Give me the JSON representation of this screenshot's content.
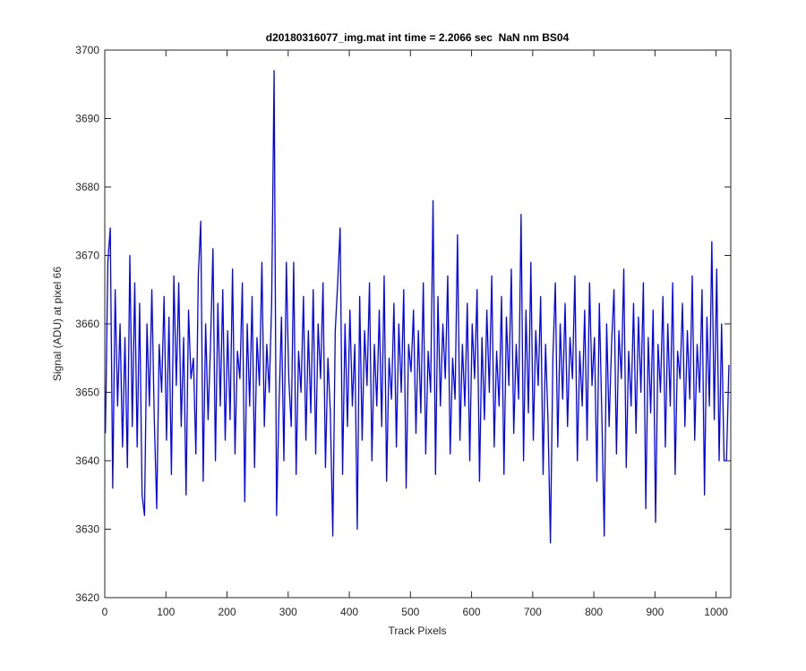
{
  "chart_data": {
    "type": "line",
    "title": "d20180316077_img.mat int time = 2.2066 sec  NaN nm BS04",
    "xlabel": "Track Pixels",
    "ylabel": "Signal (ADU) at pixel 66",
    "color": "#0000ff",
    "xlim": [
      0,
      1024
    ],
    "ylim": [
      3620,
      3700
    ],
    "xticks": [
      0,
      100,
      200,
      300,
      400,
      500,
      600,
      700,
      800,
      900,
      1000
    ],
    "yticks": [
      3620,
      3630,
      3640,
      3650,
      3660,
      3670,
      3680,
      3690,
      3700
    ],
    "grid": false,
    "x": [
      1,
      5,
      9,
      13,
      17,
      21,
      25,
      29,
      33,
      37,
      41,
      45,
      49,
      53,
      57,
      61,
      65,
      69,
      73,
      77,
      81,
      85,
      89,
      93,
      97,
      101,
      105,
      109,
      113,
      117,
      121,
      125,
      129,
      133,
      137,
      141,
      145,
      149,
      153,
      157,
      161,
      165,
      169,
      173,
      177,
      181,
      185,
      189,
      193,
      197,
      201,
      205,
      209,
      213,
      217,
      221,
      225,
      229,
      233,
      237,
      241,
      245,
      249,
      253,
      257,
      261,
      265,
      269,
      273,
      277,
      281,
      285,
      289,
      293,
      297,
      301,
      305,
      309,
      313,
      317,
      321,
      325,
      329,
      333,
      337,
      341,
      345,
      349,
      353,
      357,
      361,
      365,
      369,
      373,
      377,
      381,
      385,
      389,
      393,
      397,
      401,
      405,
      409,
      413,
      417,
      421,
      425,
      429,
      433,
      437,
      441,
      445,
      449,
      453,
      457,
      461,
      465,
      469,
      473,
      477,
      481,
      485,
      489,
      493,
      497,
      501,
      505,
      509,
      513,
      517,
      521,
      525,
      529,
      533,
      537,
      541,
      545,
      549,
      553,
      557,
      561,
      565,
      569,
      573,
      577,
      581,
      585,
      589,
      593,
      597,
      601,
      605,
      609,
      613,
      617,
      621,
      625,
      629,
      633,
      637,
      641,
      645,
      649,
      653,
      657,
      661,
      665,
      669,
      673,
      677,
      681,
      685,
      689,
      693,
      697,
      701,
      705,
      709,
      713,
      717,
      721,
      725,
      729,
      733,
      737,
      741,
      745,
      749,
      753,
      757,
      761,
      765,
      769,
      773,
      777,
      781,
      785,
      789,
      793,
      797,
      801,
      805,
      809,
      813,
      817,
      821,
      825,
      829,
      833,
      837,
      841,
      845,
      849,
      853,
      857,
      861,
      865,
      869,
      873,
      877,
      881,
      885,
      889,
      893,
      897,
      901,
      905,
      909,
      913,
      917,
      921,
      925,
      929,
      933,
      937,
      941,
      945,
      949,
      953,
      957,
      961,
      965,
      969,
      973,
      977,
      981,
      985,
      989,
      993,
      997,
      1001,
      1005,
      1009,
      1013,
      1017,
      1021
    ],
    "values": [
      3644,
      3669,
      3674,
      3636,
      3665,
      3648,
      3660,
      3642,
      3658,
      3639,
      3670,
      3645,
      3666,
      3642,
      3663,
      3635,
      3632,
      3660,
      3648,
      3665,
      3646,
      3633,
      3657,
      3650,
      3664,
      3643,
      3661,
      3638,
      3667,
      3651,
      3666,
      3645,
      3658,
      3635,
      3662,
      3652,
      3655,
      3641,
      3667,
      3675,
      3637,
      3660,
      3646,
      3657,
      3671,
      3640,
      3663,
      3648,
      3665,
      3643,
      3659,
      3646,
      3668,
      3641,
      3656,
      3652,
      3666,
      3634,
      3660,
      3648,
      3664,
      3639,
      3658,
      3651,
      3669,
      3645,
      3657,
      3650,
      3663,
      3697,
      3632,
      3648,
      3661,
      3640,
      3669,
      3652,
      3645,
      3669,
      3638,
      3656,
      3650,
      3664,
      3643,
      3659,
      3647,
      3665,
      3641,
      3660,
      3652,
      3666,
      3639,
      3655,
      3647,
      3629,
      3659,
      3666,
      3674,
      3638,
      3660,
      3645,
      3662,
      3648,
      3657,
      3630,
      3664,
      3643,
      3659,
      3651,
      3666,
      3640,
      3657,
      3648,
      3662,
      3645,
      3667,
      3637,
      3655,
      3649,
      3663,
      3642,
      3660,
      3650,
      3665,
      3636,
      3657,
      3653,
      3662,
      3644,
      3659,
      3647,
      3666,
      3641,
      3656,
      3650,
      3678,
      3638,
      3664,
      3648,
      3660,
      3652,
      3667,
      3641,
      3655,
      3649,
      3673,
      3643,
      3657,
      3648,
      3663,
      3640,
      3660,
      3652,
      3665,
      3637,
      3658,
      3646,
      3662,
      3650,
      3667,
      3642,
      3656,
      3648,
      3664,
      3638,
      3661,
      3651,
      3668,
      3644,
      3657,
      3649,
      3676,
      3640,
      3662,
      3647,
      3669,
      3643,
      3659,
      3651,
      3664,
      3638,
      3657,
      3646,
      3628,
      3655,
      3666,
      3642,
      3660,
      3649,
      3663,
      3645,
      3658,
      3652,
      3667,
      3640,
      3656,
      3648,
      3662,
      3643,
      3666,
      3651,
      3658,
      3637,
      3663,
      3647,
      3629,
      3660,
      3645,
      3657,
      3665,
      3641,
      3659,
      3652,
      3668,
      3639,
      3656,
      3648,
      3663,
      3644,
      3661,
      3650,
      3666,
      3633,
      3658,
      3647,
      3662,
      3631,
      3657,
      3650,
      3664,
      3642,
      3660,
      3648,
      3666,
      3638,
      3656,
      3652,
      3663,
      3645,
      3659,
      3649,
      3667,
      3643,
      3657,
      3650,
      3665,
      3635,
      3661,
      3648,
      3672,
      3646,
      3668,
      3640,
      3660,
      3640,
      3640,
      3654
    ]
  }
}
